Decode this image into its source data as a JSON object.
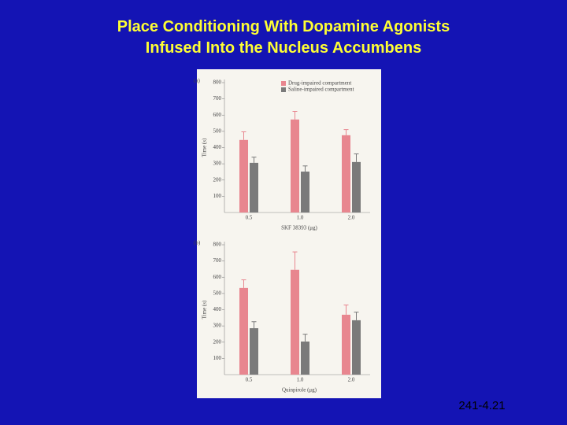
{
  "slide_title": [
    "Place Conditioning With Dopamine Agonists",
    "Infused Into the Nucleus Accumbens"
  ],
  "footer": "241-4.21",
  "chart_data": [
    {
      "type": "bar",
      "panel_label": "(a)",
      "ylabel": "Time (s)",
      "xlabel": "SKF 38393 (μg)",
      "categories": [
        "0.5",
        "1.0",
        "2.0"
      ],
      "series": [
        {
          "name": "Drug-impaired compartment",
          "color": "#e8868f",
          "values": [
            447,
            573,
            476
          ],
          "errors": [
            50,
            50,
            35
          ]
        },
        {
          "name": "Saline-impaired compartment",
          "color": "#7a7a7a",
          "values": [
            306,
            252,
            311
          ],
          "errors": [
            35,
            35,
            50
          ]
        }
      ],
      "ylim": [
        0,
        800
      ],
      "yticks": [
        100,
        200,
        300,
        400,
        500,
        600,
        700,
        800
      ]
    },
    {
      "type": "bar",
      "panel_label": "(b)",
      "ylabel": "Time (s)",
      "xlabel": "Quinpirole (μg)",
      "categories": [
        "0.5",
        "1.0",
        "2.0"
      ],
      "series": [
        {
          "color": "#e8868f",
          "values": [
            534,
            646,
            369
          ],
          "errors": [
            50,
            110,
            60
          ]
        },
        {
          "color": "#7a7a7a",
          "values": [
            286,
            204,
            335
          ],
          "errors": [
            40,
            45,
            50
          ]
        }
      ],
      "ylim": [
        0,
        800
      ],
      "yticks": [
        100,
        200,
        300,
        400,
        500,
        600,
        700,
        800
      ]
    }
  ]
}
